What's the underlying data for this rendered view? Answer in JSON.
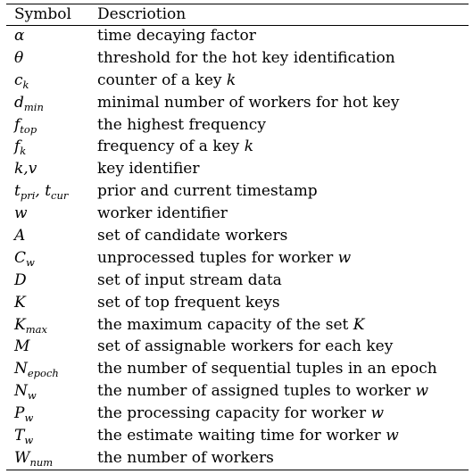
{
  "table": {
    "headers": {
      "symbol": "Symbol",
      "description": "Descriotion"
    },
    "rows": [
      {
        "symbol": {
          "base": "α",
          "sub": ""
        },
        "description": {
          "text": "time decaying factor",
          "var": ""
        }
      },
      {
        "symbol": {
          "base": "θ",
          "sub": ""
        },
        "description": {
          "text": "threshold for the hot key identification",
          "var": ""
        }
      },
      {
        "symbol": {
          "base": "c",
          "sub": "k"
        },
        "description": {
          "text": "counter of a key ",
          "var": "k"
        }
      },
      {
        "symbol": {
          "base": "d",
          "sub": "min"
        },
        "description": {
          "text": "minimal number of workers for hot key",
          "var": ""
        }
      },
      {
        "symbol": {
          "base": "f",
          "sub": "top"
        },
        "description": {
          "text": "the highest frequency",
          "var": ""
        }
      },
      {
        "symbol": {
          "base": "f",
          "sub": "k"
        },
        "description": {
          "text": "frequency of a key ",
          "var": "k"
        }
      },
      {
        "symbol": {
          "base": "k,v",
          "sub": ""
        },
        "description": {
          "text": "key identifier",
          "var": ""
        }
      },
      {
        "symbol": {
          "base": "t",
          "sub": "pri",
          "base2": ", t",
          "sub2": "cur"
        },
        "description": {
          "text": "prior and current timestamp",
          "var": ""
        }
      },
      {
        "symbol": {
          "base": "w",
          "sub": ""
        },
        "description": {
          "text": "worker identifier",
          "var": ""
        }
      },
      {
        "symbol": {
          "base": "A",
          "sub": ""
        },
        "description": {
          "text": "set of candidate workers",
          "var": ""
        }
      },
      {
        "symbol": {
          "base": "C",
          "sub": "w"
        },
        "description": {
          "text": "unprocessed tuples for worker ",
          "var": "w"
        }
      },
      {
        "symbol": {
          "base": "D",
          "sub": ""
        },
        "description": {
          "text": "set of input stream data",
          "var": ""
        }
      },
      {
        "symbol": {
          "base": "K",
          "sub": ""
        },
        "description": {
          "text": "set of top frequent keys",
          "var": ""
        }
      },
      {
        "symbol": {
          "base": "K",
          "sub": "max"
        },
        "description": {
          "text": "the maximum capacity of the set ",
          "var": "K"
        }
      },
      {
        "symbol": {
          "base": "M",
          "sub": ""
        },
        "description": {
          "text": "set of assignable workers for each key",
          "var": ""
        }
      },
      {
        "symbol": {
          "base": "N",
          "sub": "epoch"
        },
        "description": {
          "text": "the number of sequential tuples in an epoch",
          "var": ""
        }
      },
      {
        "symbol": {
          "base": "N",
          "sub": "w"
        },
        "description": {
          "text": "the number of assigned tuples to worker ",
          "var": "w"
        }
      },
      {
        "symbol": {
          "base": "P",
          "sub": "w"
        },
        "description": {
          "text": "the processing capacity for worker ",
          "var": "w"
        }
      },
      {
        "symbol": {
          "base": "T",
          "sub": "w"
        },
        "description": {
          "text": "the estimate waiting time for worker ",
          "var": "w"
        }
      },
      {
        "symbol": {
          "base": "W",
          "sub": "num"
        },
        "description": {
          "text": "the number of workers",
          "var": ""
        }
      }
    ]
  }
}
